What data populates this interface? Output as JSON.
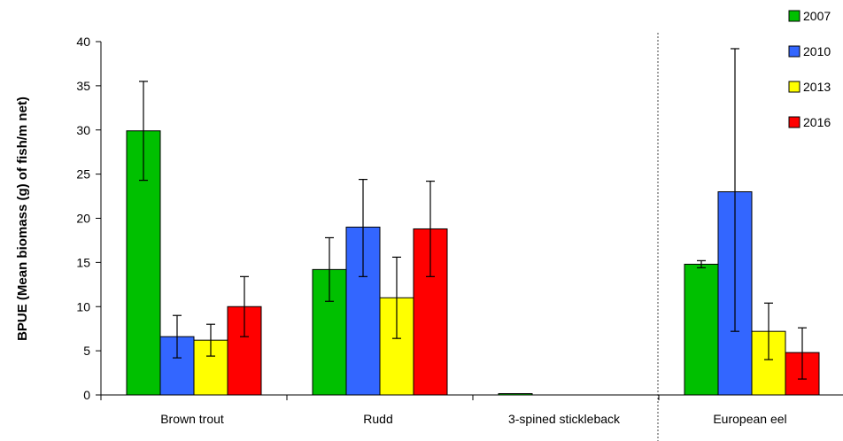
{
  "chart_data": {
    "type": "bar",
    "title": "",
    "xlabel": "",
    "ylabel": "BPUE (Mean biomass (g) of fish/m net)",
    "ylim": [
      0,
      40
    ],
    "yticks": [
      0,
      5,
      10,
      15,
      20,
      25,
      30,
      35,
      40
    ],
    "categories": [
      "Brown trout",
      "Rudd",
      "3-spined stickleback",
      "European eel"
    ],
    "legend_position": "top-right",
    "grid": false,
    "series": [
      {
        "name": "2007",
        "color": "#00c000",
        "values": [
          29.9,
          14.2,
          0.1,
          14.8
        ],
        "error_low": [
          24.3,
          10.6,
          null,
          14.4
        ],
        "error_high": [
          35.5,
          17.8,
          null,
          15.2
        ]
      },
      {
        "name": "2010",
        "color": "#3366ff",
        "values": [
          6.6,
          19.0,
          null,
          23.0
        ],
        "error_low": [
          4.2,
          13.4,
          null,
          7.2
        ],
        "error_high": [
          9.0,
          24.4,
          null,
          39.2
        ]
      },
      {
        "name": "2013",
        "color": "#ffff00",
        "values": [
          6.2,
          11.0,
          null,
          7.2
        ],
        "error_low": [
          4.4,
          6.4,
          null,
          4.0
        ],
        "error_high": [
          8.0,
          15.6,
          null,
          10.4
        ]
      },
      {
        "name": "2016",
        "color": "#ff0000",
        "values": [
          10.0,
          18.8,
          null,
          4.8
        ],
        "error_low": [
          6.6,
          13.4,
          null,
          1.8
        ],
        "error_high": [
          13.4,
          24.2,
          null,
          7.6
        ]
      }
    ]
  }
}
